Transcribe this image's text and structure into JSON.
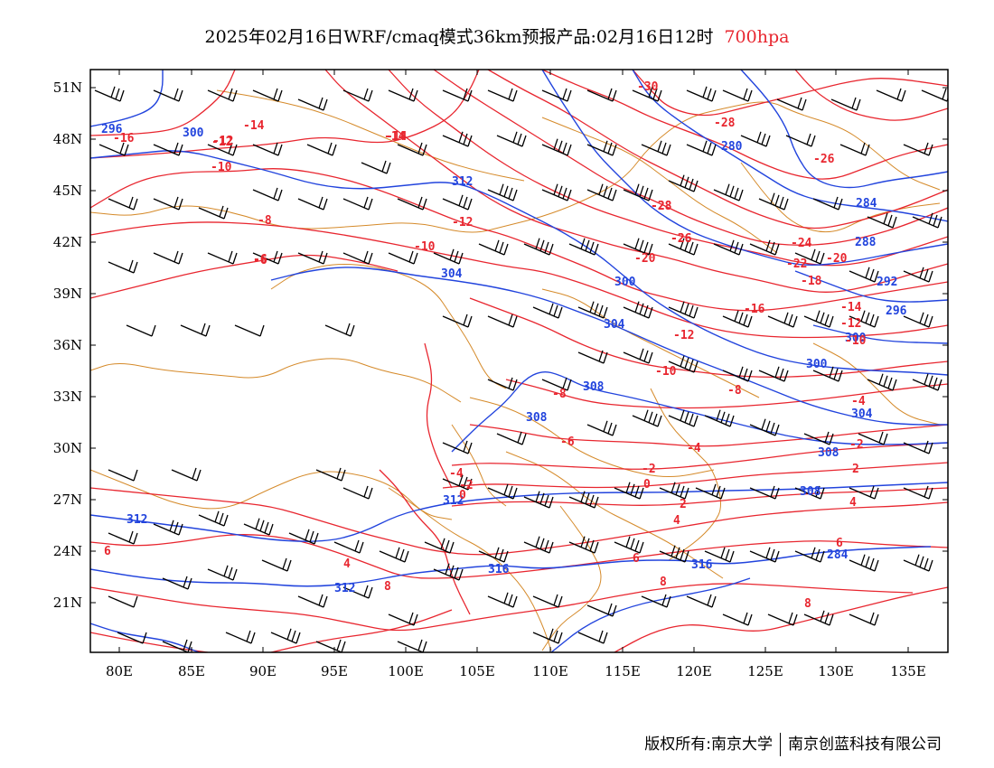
{
  "title": {
    "text": "2025年02月16日WRF/cmaq模式36km预报产品:02月16日12时",
    "level": "700hpa"
  },
  "colors": {
    "temperature": "#e8262f",
    "height": "#2244dd",
    "border": "#d58a2a",
    "wind": "#000000",
    "frame": "#000000"
  },
  "axes": {
    "lon_ticks": [
      "80E",
      "85E",
      "90E",
      "95E",
      "100E",
      "105E",
      "110E",
      "115E",
      "120E",
      "125E",
      "130E",
      "135E"
    ],
    "lat_ticks": [
      "51N",
      "48N",
      "45N",
      "42N",
      "39N",
      "36N",
      "33N",
      "30N",
      "27N",
      "24N",
      "21N"
    ]
  },
  "height_labels": [
    "296",
    "300",
    "300",
    "304",
    "300",
    "304",
    "308",
    "308",
    "308",
    "312",
    "312",
    "312",
    "316",
    "316",
    "284",
    "280",
    "284",
    "288",
    "292",
    "296",
    "300",
    "304",
    "308",
    "312"
  ],
  "temperature_labels": [
    "-16",
    "-12",
    "-14",
    "-14",
    "-10",
    "-12",
    "-10",
    "-8",
    "-6",
    "-30",
    "-28",
    "-28",
    "-26",
    "-26",
    "-24",
    "-22",
    "-20",
    "-20",
    "-18",
    "-16",
    "-14",
    "-12",
    "-12",
    "-10",
    "-10",
    "-8",
    "-8",
    "-6",
    "-4",
    "-4",
    "-2",
    "-2",
    "0",
    "2",
    "4",
    "4",
    "6",
    "6",
    "8",
    "8",
    "-4",
    "-2",
    "0",
    "2",
    "4",
    "6",
    "8",
    "-14",
    "-12",
    "-6",
    "-28",
    "-26"
  ],
  "credit": {
    "left": "版权所有:南京大学",
    "right": "南京创蓝科技有限公司"
  }
}
